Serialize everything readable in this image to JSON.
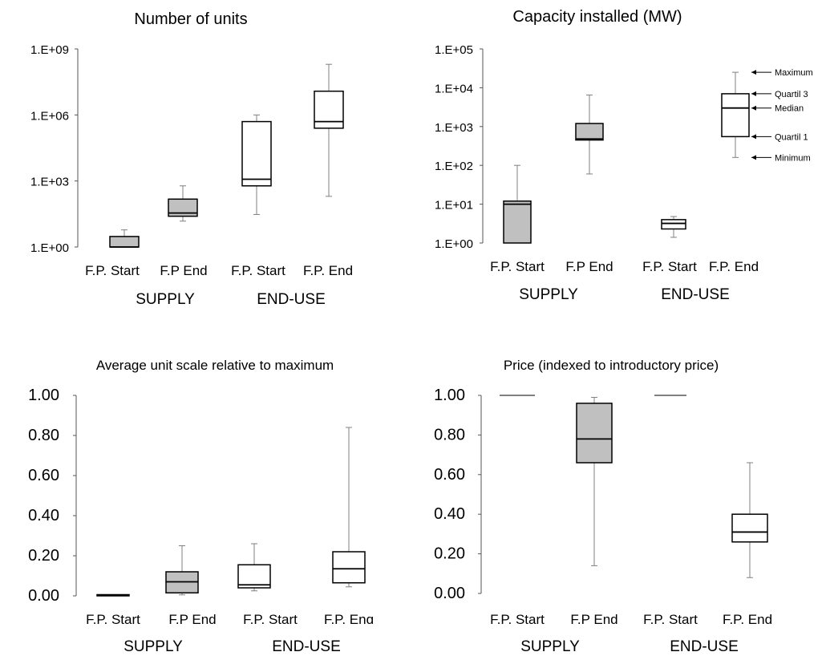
{
  "legend_labels": {
    "maximum": "Maximum",
    "quartile3": "Quartil 3",
    "median": "Median",
    "quartile1": "Quartil 1",
    "minimum": "Minimum"
  },
  "colors": {
    "supply_fill": "#c0c0c0",
    "enduse_fill": "#ffffff",
    "stroke": "#000000",
    "whisker": "#808080"
  },
  "chart_data": [
    {
      "type": "boxplot",
      "title": "Number of units",
      "yscale": "log10",
      "ylim": [
        1,
        1000000000
      ],
      "yticks": [
        "1.E+00",
        "1.E+03",
        "1.E+06",
        "1.E+09"
      ],
      "categories": [
        "F.P. Start",
        "F.P End",
        "F.P. Start",
        "F.P. End"
      ],
      "groups": [
        "SUPPLY",
        "END-USE"
      ],
      "series": [
        {
          "category": "F.P. Start",
          "group": "SUPPLY",
          "min": 1,
          "q1": 1,
          "median": 1,
          "q3": 3,
          "max": 6
        },
        {
          "category": "F.P End",
          "group": "SUPPLY",
          "min": 15,
          "q1": 25,
          "median": 35,
          "q3": 150,
          "max": 600
        },
        {
          "category": "F.P. Start",
          "group": "END-USE",
          "min": 30,
          "q1": 600,
          "median": 1200,
          "q3": 500000,
          "max": 1000000
        },
        {
          "category": "F.P. End",
          "group": "END-USE",
          "min": 200,
          "q1": 250000,
          "median": 500000,
          "q3": 12000000,
          "max": 200000000
        }
      ]
    },
    {
      "type": "boxplot",
      "title": "Capacity installed (MW)",
      "yscale": "log10",
      "ylim": [
        1,
        100000
      ],
      "yticks": [
        "1.E+00",
        "1.E+01",
        "1.E+02",
        "1.E+03",
        "1.E+04",
        "1.E+05"
      ],
      "categories": [
        "F.P. Start",
        "F.P End",
        "F.P. Start",
        "F.P. End"
      ],
      "groups": [
        "SUPPLY",
        "END-USE"
      ],
      "series": [
        {
          "category": "F.P. Start",
          "group": "SUPPLY",
          "min": 1,
          "q1": 1,
          "median": 10,
          "q3": 12,
          "max": 100
        },
        {
          "category": "F.P End",
          "group": "SUPPLY",
          "min": 60,
          "q1": 450,
          "median": 480,
          "q3": 1200,
          "max": 6500
        },
        {
          "category": "F.P. Start",
          "group": "END-USE",
          "min": 1.4,
          "q1": 2.3,
          "median": 3.2,
          "q3": 4,
          "max": 4.8
        },
        {
          "category": "F.P. End",
          "group": "END-USE",
          "min": 160,
          "q1": 550,
          "median": 3000,
          "q3": 7000,
          "max": 25000
        }
      ]
    },
    {
      "type": "boxplot",
      "title": "Average unit scale relative to maximum",
      "yscale": "linear",
      "ylim": [
        0,
        1
      ],
      "yticks": [
        "0.00",
        "0.20",
        "0.40",
        "0.60",
        "0.80",
        "1.00"
      ],
      "categories": [
        "F.P. Start",
        "F.P End",
        "F.P. Start",
        "F.P. Enɑ"
      ],
      "groups": [
        "SUPPLY",
        "END-USE"
      ],
      "series": [
        {
          "category": "F.P. Start",
          "group": "SUPPLY",
          "min": 0.0,
          "q1": 0.0,
          "median": 0.003,
          "q3": 0.006,
          "max": 0.006
        },
        {
          "category": "F.P End",
          "group": "SUPPLY",
          "min": 0.005,
          "q1": 0.015,
          "median": 0.07,
          "q3": 0.12,
          "max": 0.25
        },
        {
          "category": "F.P. Start",
          "group": "END-USE",
          "min": 0.025,
          "q1": 0.04,
          "median": 0.055,
          "q3": 0.155,
          "max": 0.26
        },
        {
          "category": "F.P. Enɑ",
          "group": "END-USE",
          "min": 0.045,
          "q1": 0.065,
          "median": 0.135,
          "q3": 0.22,
          "max": 0.84
        }
      ]
    },
    {
      "type": "boxplot",
      "title": "Price (indexed to introductory price)",
      "yscale": "linear",
      "ylim": [
        0,
        1
      ],
      "yticks": [
        "0.00",
        "0.20",
        "0.40",
        "0.60",
        "0.80",
        "1.00"
      ],
      "categories": [
        "F.P. Start",
        "F.P End",
        "F.P. Start",
        "F.P. End"
      ],
      "groups": [
        "SUPPLY",
        "END-USE"
      ],
      "series": [
        {
          "category": "F.P. Start",
          "group": "SUPPLY",
          "min": 1.0,
          "q1": 1.0,
          "median": 1.0,
          "q3": 1.0,
          "max": 1.0
        },
        {
          "category": "F.P End",
          "group": "SUPPLY",
          "min": 0.14,
          "q1": 0.66,
          "median": 0.78,
          "q3": 0.96,
          "max": 0.99
        },
        {
          "category": "F.P. Start",
          "group": "END-USE",
          "min": 1.0,
          "q1": 1.0,
          "median": 1.0,
          "q3": 1.0,
          "max": 1.0
        },
        {
          "category": "F.P. End",
          "group": "END-USE",
          "min": 0.08,
          "q1": 0.26,
          "median": 0.31,
          "q3": 0.4,
          "max": 0.66
        }
      ]
    }
  ]
}
